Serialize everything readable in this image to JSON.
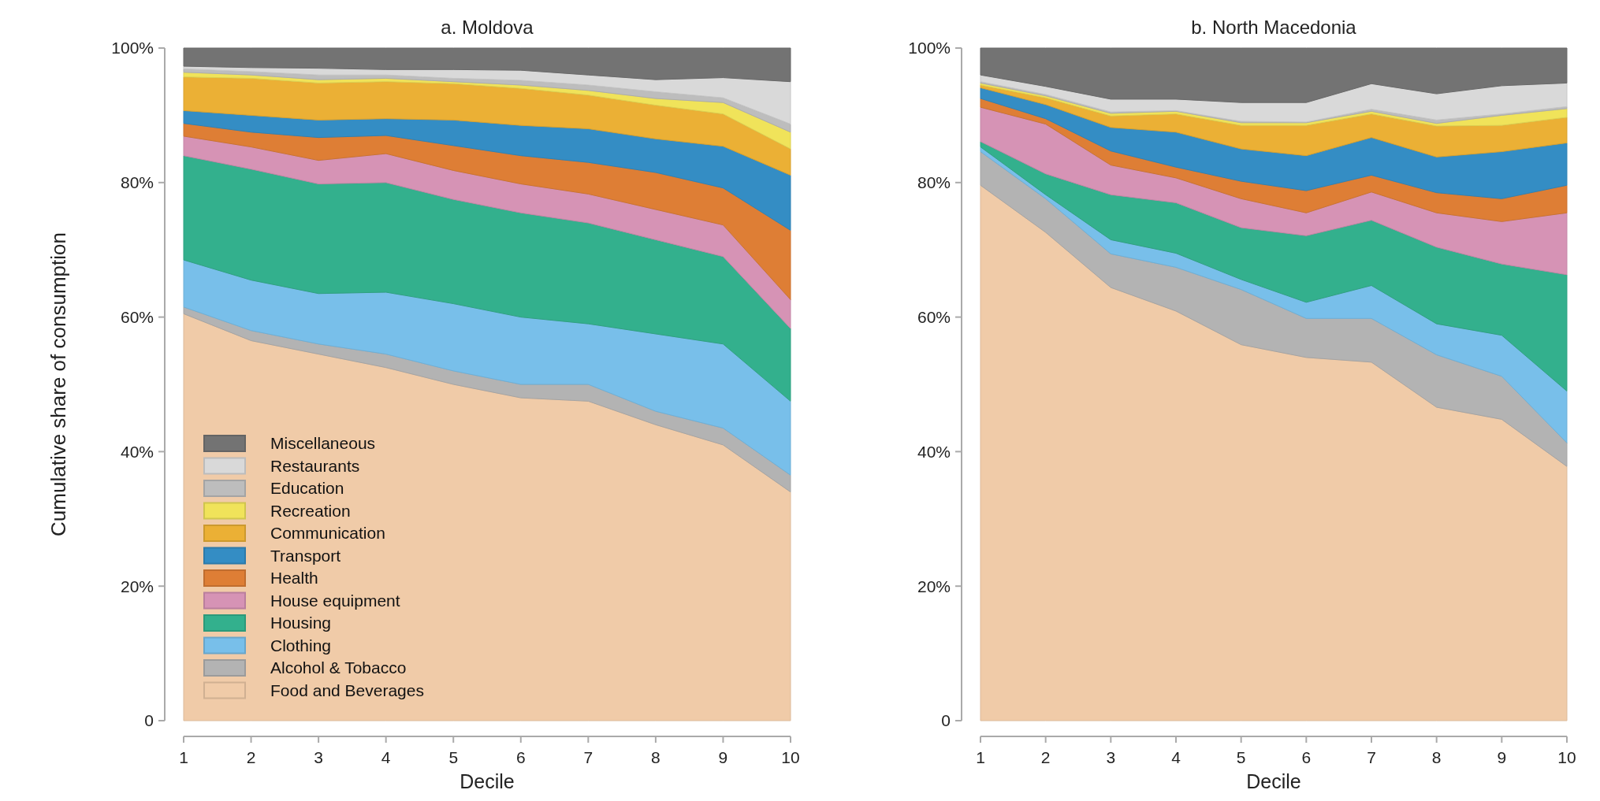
{
  "chart_data": [
    {
      "type": "area",
      "stacked": true,
      "title": "a. Moldova",
      "xlabel": "Decile",
      "ylabel": "Cumulative share of consumption",
      "legend": "bottom left",
      "x": [
        1,
        2,
        3,
        4,
        5,
        6,
        7,
        8,
        9,
        10
      ],
      "xlim": [
        1,
        10
      ],
      "xticks": [
        1,
        2,
        3,
        4,
        5,
        6,
        7,
        8,
        9,
        10
      ],
      "ylim": [
        0,
        100
      ],
      "yticks": [
        0,
        {
          "value": 20,
          "label": "20%"
        },
        {
          "value": 40,
          "label": "40%"
        },
        {
          "value": 60,
          "label": "60%"
        },
        {
          "value": 80,
          "label": "80%"
        },
        {
          "value": 100,
          "label": "100%"
        }
      ],
      "series": [
        {
          "name": "Food and Beverages",
          "color": "#f0cba8",
          "values": [
            60.5,
            56.5,
            54.5,
            52.5,
            50,
            48,
            47.5,
            44,
            41,
            34
          ]
        },
        {
          "name": "Alcohol & Tobacco",
          "color": "#b3b3b3",
          "values": [
            1,
            1.5,
            1.5,
            2,
            2,
            2,
            2.5,
            2,
            2.5,
            2.5
          ]
        },
        {
          "name": "Clothing",
          "color": "#78bfea",
          "values": [
            7,
            7.5,
            7.5,
            9.2,
            10,
            10,
            9,
            11.5,
            12.5,
            11
          ]
        },
        {
          "name": "Housing",
          "color": "#33b08d",
          "values": [
            15.5,
            16.5,
            16.3,
            16.3,
            15.5,
            15.5,
            15,
            14,
            13,
            10.8
          ]
        },
        {
          "name": "House equipment",
          "color": "#d693b5",
          "values": [
            2.9,
            3.3,
            3.5,
            4.3,
            4.3,
            4.3,
            4.3,
            4.5,
            4.7,
            4.3
          ]
        },
        {
          "name": "Health",
          "color": "#de7e35",
          "values": [
            1.9,
            2.2,
            3.4,
            2.7,
            3.7,
            4.2,
            4.7,
            5.5,
            5.5,
            10.3
          ]
        },
        {
          "name": "Transport",
          "color": "#348dc4",
          "values": [
            1.9,
            2.5,
            2.6,
            2.5,
            3.8,
            4.5,
            5,
            5,
            6.2,
            8.2
          ]
        },
        {
          "name": "Communication",
          "color": "#ebb035",
          "values": [
            5,
            5.5,
            5.5,
            5.5,
            5.4,
            5.5,
            5,
            5,
            4.8,
            3.9
          ]
        },
        {
          "name": "Recreation",
          "color": "#f0e35a",
          "values": [
            0.7,
            0.5,
            0.5,
            0.5,
            0.3,
            0.5,
            0.7,
            1,
            1.7,
            2.5
          ]
        },
        {
          "name": "Education",
          "color": "#bdbdbd",
          "values": [
            0.5,
            0.5,
            0.7,
            0.5,
            0.5,
            0.7,
            0.8,
            1,
            0.7,
            1.2
          ]
        },
        {
          "name": "Restaurants",
          "color": "#d9d9d9",
          "values": [
            0.4,
            0.6,
            1,
            0.8,
            1.3,
            1.5,
            1.5,
            1.8,
            3,
            6.3
          ]
        },
        {
          "name": "Miscellaneous",
          "color": "#737373",
          "values": [
            2.7,
            2.9,
            3,
            3.2,
            3.2,
            3.3,
            4,
            4.7,
            4.4,
            5
          ]
        }
      ]
    },
    {
      "type": "area",
      "stacked": true,
      "title": "b. North Macedonia",
      "xlabel": "Decile",
      "x": [
        1,
        2,
        3,
        4,
        5,
        6,
        7,
        8,
        9,
        10
      ],
      "xlim": [
        1,
        10
      ],
      "xticks": [
        1,
        2,
        3,
        4,
        5,
        6,
        7,
        8,
        9,
        10
      ],
      "ylim": [
        0,
        100
      ],
      "yticks": [
        0,
        {
          "value": 20,
          "label": "20%"
        },
        {
          "value": 40,
          "label": "40%"
        },
        {
          "value": 60,
          "label": "60%"
        },
        {
          "value": 80,
          "label": "80%"
        },
        {
          "value": 100,
          "label": "100%"
        }
      ],
      "series": [
        {
          "color": "#f0cba8",
          "values": [
            79.6,
            72.6,
            64.4,
            60.9,
            55.9,
            54,
            53.3,
            46.6,
            44.8,
            37.8
          ]
        },
        {
          "color": "#b3b3b3",
          "values": [
            5,
            5,
            5,
            6.5,
            8.2,
            5.8,
            6.5,
            7.8,
            6.4,
            3.5
          ]
        },
        {
          "color": "#78bfea",
          "values": [
            0.7,
            0.6,
            2.1,
            2.1,
            1.5,
            2.4,
            4.9,
            4.6,
            6.1,
            7.7
          ]
        },
        {
          "color": "#33b08d",
          "values": [
            0.8,
            3.1,
            6.7,
            7.5,
            7.7,
            9.9,
            9.7,
            11.4,
            10.6,
            17.3
          ]
        },
        {
          "color": "#d693b5",
          "values": [
            5.1,
            7.4,
            4.4,
            3.7,
            4.3,
            3.4,
            4.2,
            5.1,
            6.3,
            9.2
          ]
        },
        {
          "color": "#de7e35",
          "values": [
            1.3,
            0.8,
            2.1,
            1.6,
            2.6,
            3.3,
            2.5,
            3,
            3.4,
            4.1
          ]
        },
        {
          "color": "#348dc4",
          "values": [
            1.6,
            2.1,
            3.5,
            5.2,
            4.8,
            5.2,
            5.6,
            5.3,
            7,
            6.3
          ]
        },
        {
          "color": "#ebb035",
          "values": [
            0.4,
            1,
            1.7,
            2.7,
            3.5,
            4.5,
            3.5,
            4.6,
            3.9,
            3.8
          ]
        },
        {
          "color": "#f0e35a",
          "values": [
            0.3,
            0.3,
            0.4,
            0.4,
            0.4,
            0.4,
            0.4,
            0.4,
            1.5,
            1.3
          ]
        },
        {
          "color": "#bdbdbd",
          "values": [
            0.2,
            0.2,
            0.2,
            0.1,
            0.2,
            0.1,
            0.3,
            0.5,
            0.2,
            0.3
          ]
        },
        {
          "color": "#d9d9d9",
          "values": [
            1,
            1.2,
            1.9,
            1.7,
            2.8,
            2.9,
            3.8,
            3.9,
            4.2,
            3.5
          ]
        },
        {
          "color": "#737373",
          "values": [
            4,
            5.7,
            7.6,
            7.6,
            8.1,
            8.1,
            5.3,
            6.8,
            5.6,
            5.2
          ]
        }
      ]
    }
  ]
}
